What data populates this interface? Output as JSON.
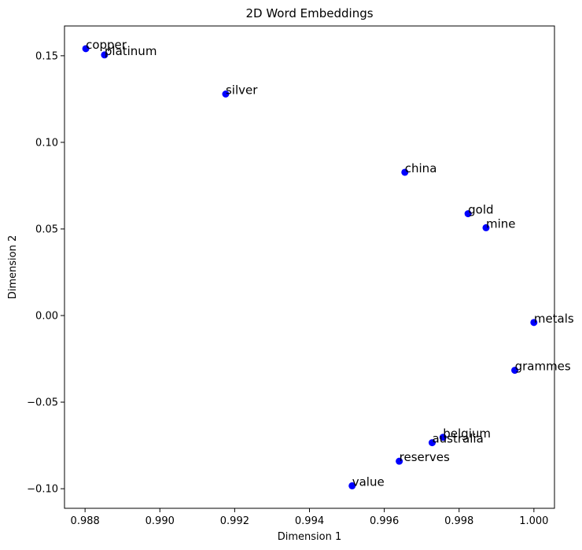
{
  "chart_data": {
    "type": "scatter",
    "title": "2D Word Embeddings",
    "xlabel": "Dimension 1",
    "ylabel": "Dimension 2",
    "xlim": [
      0.98745,
      1.00055
    ],
    "ylim": [
      -0.1113,
      0.1672
    ],
    "xticks": [
      0.988,
      0.99,
      0.992,
      0.994,
      0.996,
      0.998,
      1.0
    ],
    "xtick_labels": [
      "0.988",
      "0.990",
      "0.992",
      "0.994",
      "0.996",
      "0.998",
      "1.000"
    ],
    "yticks": [
      -0.1,
      -0.05,
      0.0,
      0.05,
      0.1,
      0.15
    ],
    "ytick_labels": [
      "−0.10",
      "−0.05",
      "0.00",
      "0.05",
      "0.10",
      "0.15"
    ],
    "grid": false,
    "marker_color": "#0000ff",
    "points": [
      {
        "label": "copper",
        "x": 0.98802,
        "y": 0.1541
      },
      {
        "label": "platinum",
        "x": 0.98852,
        "y": 0.1505
      },
      {
        "label": "silver",
        "x": 0.99176,
        "y": 0.1279
      },
      {
        "label": "china",
        "x": 0.99655,
        "y": 0.0827
      },
      {
        "label": "gold",
        "x": 0.99824,
        "y": 0.0588
      },
      {
        "label": "mine",
        "x": 0.99872,
        "y": 0.0507
      },
      {
        "label": "metals",
        "x": 1.0,
        "y": -0.004
      },
      {
        "label": "grammes",
        "x": 0.99949,
        "y": -0.0316
      },
      {
        "label": "belgium",
        "x": 0.99757,
        "y": -0.0703
      },
      {
        "label": "australia",
        "x": 0.99728,
        "y": -0.0734
      },
      {
        "label": "reserves",
        "x": 0.9964,
        "y": -0.0841
      },
      {
        "label": "value",
        "x": 0.99514,
        "y": -0.0983
      }
    ]
  }
}
